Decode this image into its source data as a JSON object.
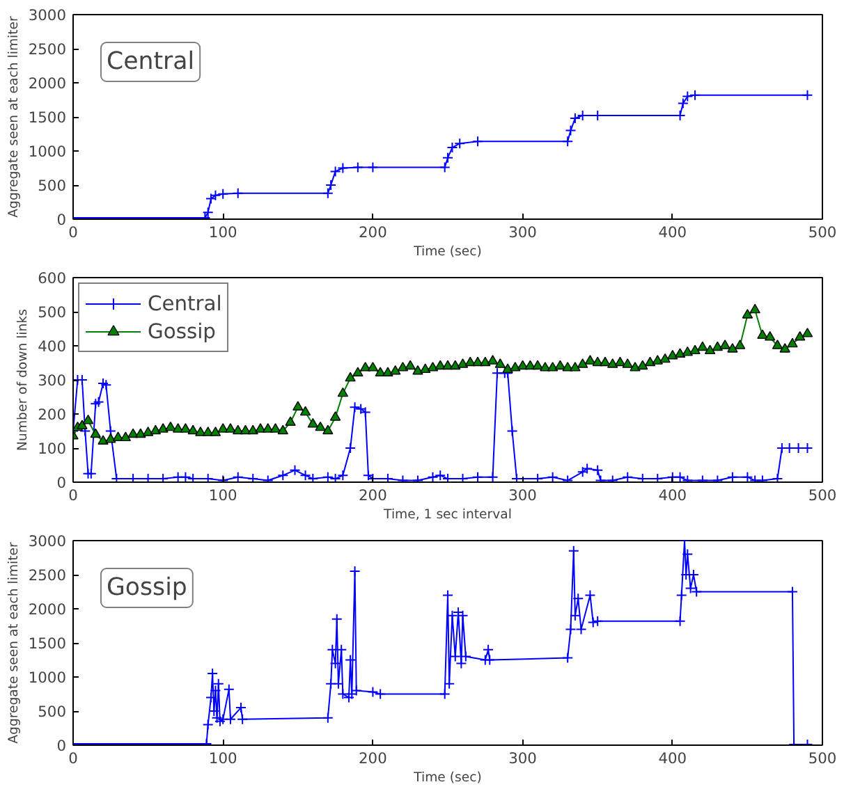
{
  "chart_data": [
    {
      "type": "line",
      "xlabel": "Time (sec)",
      "ylabel": "Aggregate seen at each limiter",
      "annotations": [
        "Central"
      ],
      "xlim": [
        0,
        500
      ],
      "xticks": [
        0,
        100,
        200,
        300,
        400,
        500
      ],
      "ylim": [
        0,
        3000
      ],
      "yticks": [
        0,
        500,
        1000,
        1500,
        2000,
        2500,
        3000
      ],
      "grid": false,
      "legend": false,
      "marker": "cross",
      "series": [
        {
          "color": "#0000ff",
          "x": [
            0,
            88,
            90,
            92,
            95,
            100,
            110,
            170,
            172,
            175,
            180,
            190,
            200,
            248,
            250,
            253,
            258,
            270,
            330,
            332,
            335,
            340,
            350,
            405,
            407,
            410,
            415,
            490
          ],
          "values": [
            20,
            20,
            100,
            300,
            350,
            370,
            380,
            380,
            500,
            700,
            750,
            760,
            760,
            760,
            900,
            1050,
            1110,
            1140,
            1140,
            1300,
            1480,
            1520,
            1520,
            1520,
            1700,
            1800,
            1820,
            1820
          ]
        }
      ]
    },
    {
      "type": "line",
      "xlabel": "Time, 1 sec interval",
      "ylabel": "Number of down links",
      "xlim": [
        0,
        500
      ],
      "xticks": [
        0,
        100,
        200,
        300,
        400,
        500
      ],
      "ylim": [
        0,
        600
      ],
      "yticks": [
        0,
        100,
        200,
        300,
        400,
        500,
        600
      ],
      "grid": false,
      "legend": "top left",
      "series": [
        {
          "name": "Central",
          "color": "#0000ff",
          "marker": "cross",
          "x": [
            0,
            3,
            6,
            8,
            10,
            12,
            15,
            17,
            20,
            22,
            25,
            29,
            40,
            50,
            60,
            70,
            75,
            80,
            90,
            100,
            110,
            120,
            130,
            140,
            148,
            155,
            160,
            170,
            175,
            180,
            185,
            188,
            192,
            195,
            197,
            200,
            210,
            220,
            230,
            240,
            245,
            250,
            260,
            270,
            280,
            283,
            288,
            290,
            293,
            296,
            310,
            320,
            330,
            340,
            343,
            350,
            352,
            360,
            370,
            380,
            390,
            400,
            405,
            410,
            420,
            430,
            440,
            450,
            455,
            460,
            470,
            473,
            478,
            484,
            490
          ],
          "values": [
            150,
            300,
            300,
            150,
            25,
            25,
            230,
            235,
            290,
            285,
            150,
            10,
            10,
            10,
            10,
            15,
            15,
            10,
            10,
            5,
            15,
            10,
            5,
            20,
            35,
            20,
            10,
            15,
            10,
            20,
            100,
            220,
            215,
            205,
            20,
            10,
            10,
            5,
            5,
            15,
            20,
            10,
            10,
            15,
            15,
            320,
            320,
            320,
            150,
            10,
            10,
            15,
            5,
            30,
            40,
            35,
            5,
            5,
            15,
            10,
            10,
            15,
            15,
            5,
            5,
            5,
            15,
            15,
            5,
            5,
            10,
            100,
            100,
            100,
            100
          ]
        },
        {
          "name": "Gossip",
          "color": "#008000",
          "marker": "triangle",
          "x": [
            0,
            3,
            6,
            10,
            15,
            20,
            25,
            30,
            35,
            40,
            45,
            50,
            55,
            60,
            65,
            70,
            75,
            80,
            85,
            90,
            95,
            100,
            105,
            110,
            115,
            120,
            125,
            130,
            135,
            140,
            145,
            150,
            155,
            160,
            165,
            170,
            175,
            180,
            185,
            190,
            195,
            200,
            205,
            210,
            215,
            220,
            225,
            230,
            235,
            240,
            245,
            250,
            255,
            260,
            265,
            270,
            275,
            280,
            285,
            290,
            295,
            300,
            305,
            310,
            315,
            320,
            325,
            330,
            335,
            340,
            345,
            350,
            355,
            360,
            365,
            370,
            375,
            380,
            385,
            390,
            395,
            400,
            405,
            410,
            415,
            420,
            425,
            430,
            435,
            440,
            445,
            450,
            455,
            460,
            465,
            470,
            475,
            480,
            485,
            490
          ],
          "values": [
            135,
            160,
            165,
            180,
            140,
            120,
            125,
            130,
            130,
            140,
            140,
            145,
            150,
            155,
            160,
            155,
            155,
            150,
            145,
            145,
            145,
            155,
            155,
            150,
            150,
            150,
            155,
            155,
            155,
            150,
            175,
            220,
            205,
            170,
            160,
            150,
            190,
            260,
            305,
            320,
            335,
            335,
            320,
            320,
            325,
            335,
            340,
            325,
            330,
            335,
            340,
            340,
            340,
            345,
            350,
            350,
            350,
            355,
            345,
            330,
            335,
            340,
            340,
            340,
            335,
            335,
            340,
            335,
            335,
            345,
            355,
            350,
            350,
            345,
            350,
            345,
            335,
            340,
            350,
            355,
            360,
            370,
            375,
            380,
            385,
            395,
            385,
            395,
            400,
            390,
            400,
            490,
            505,
            430,
            425,
            400,
            390,
            405,
            425,
            435
          ]
        }
      ]
    },
    {
      "type": "line",
      "xlabel": "Time (sec)",
      "ylabel": "Aggregate seen at each limiter",
      "annotations": [
        "Gossip"
      ],
      "xlim": [
        0,
        500
      ],
      "xticks": [
        0,
        100,
        200,
        300,
        400,
        500
      ],
      "ylim": [
        0,
        3000
      ],
      "yticks": [
        0,
        500,
        1000,
        1500,
        2000,
        2500,
        3000
      ],
      "grid": false,
      "legend": false,
      "marker": "cross",
      "series": [
        {
          "color": "#0000ff",
          "x": [
            0,
            89,
            90,
            92,
            93,
            94,
            95,
            96,
            97,
            98,
            100,
            104,
            105,
            112,
            113,
            170,
            172,
            173,
            175,
            176,
            177,
            179,
            180,
            184,
            185,
            186,
            188,
            189,
            200,
            205,
            248,
            250,
            251,
            253,
            255,
            257,
            259,
            260,
            262,
            275,
            277,
            278,
            330,
            332,
            334,
            335,
            337,
            339,
            345,
            347,
            350,
            405,
            406,
            408,
            409,
            410,
            412,
            414,
            416,
            480,
            481,
            490
          ],
          "values": [
            20,
            20,
            300,
            700,
            1050,
            500,
            800,
            400,
            900,
            350,
            380,
            820,
            380,
            550,
            380,
            400,
            900,
            1400,
            1200,
            1850,
            900,
            1400,
            750,
            700,
            1250,
            750,
            2550,
            800,
            780,
            750,
            750,
            2200,
            900,
            1900,
            1300,
            1950,
            1200,
            1900,
            1300,
            1250,
            1400,
            1250,
            1280,
            1700,
            2850,
            1900,
            2150,
            1700,
            2200,
            1800,
            1820,
            1820,
            2200,
            3000,
            2500,
            2800,
            2300,
            2500,
            2250,
            2250,
            10,
            10
          ]
        }
      ]
    }
  ]
}
